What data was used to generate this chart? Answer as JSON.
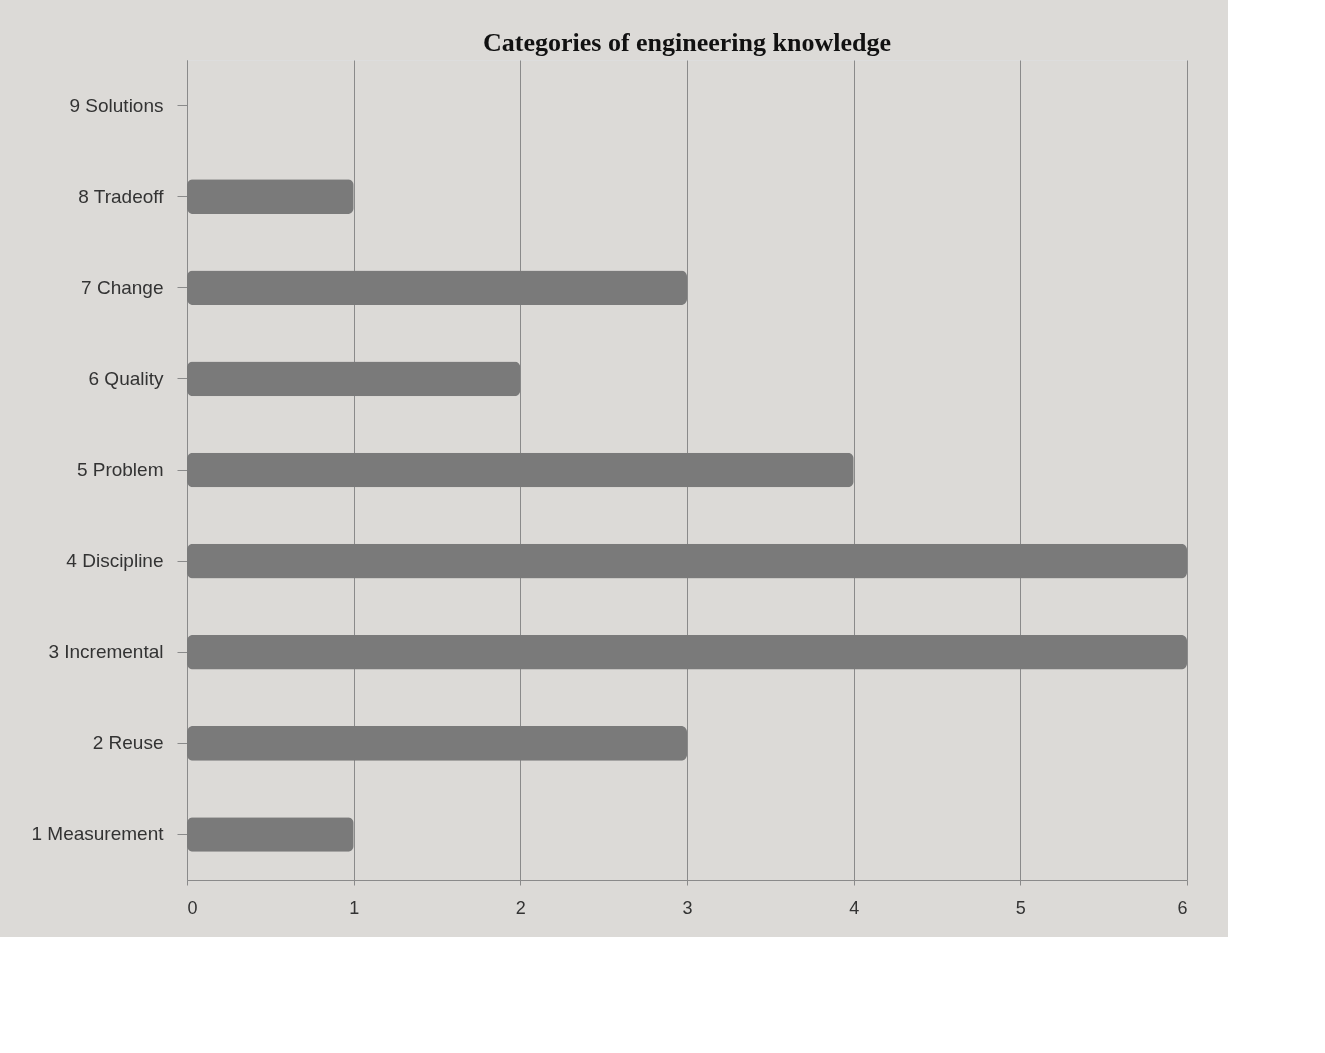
{
  "chart_data": {
    "type": "bar",
    "orientation": "horizontal",
    "title": "Categories of engineering knowledge",
    "categories": [
      "9 Solutions",
      "8 Tradeoff",
      "7 Change",
      "6 Quality",
      "5 Problem",
      "4 Discipline",
      "3 Incremental",
      "2 Reuse",
      "1 Measurement"
    ],
    "values": [
      0,
      1,
      3,
      2,
      4,
      6,
      6,
      3,
      1
    ],
    "color": "#7a7a7a",
    "xlim": [
      0,
      6
    ],
    "xticks": [
      0,
      1,
      2,
      3,
      4,
      5,
      6
    ],
    "grid": "x"
  }
}
